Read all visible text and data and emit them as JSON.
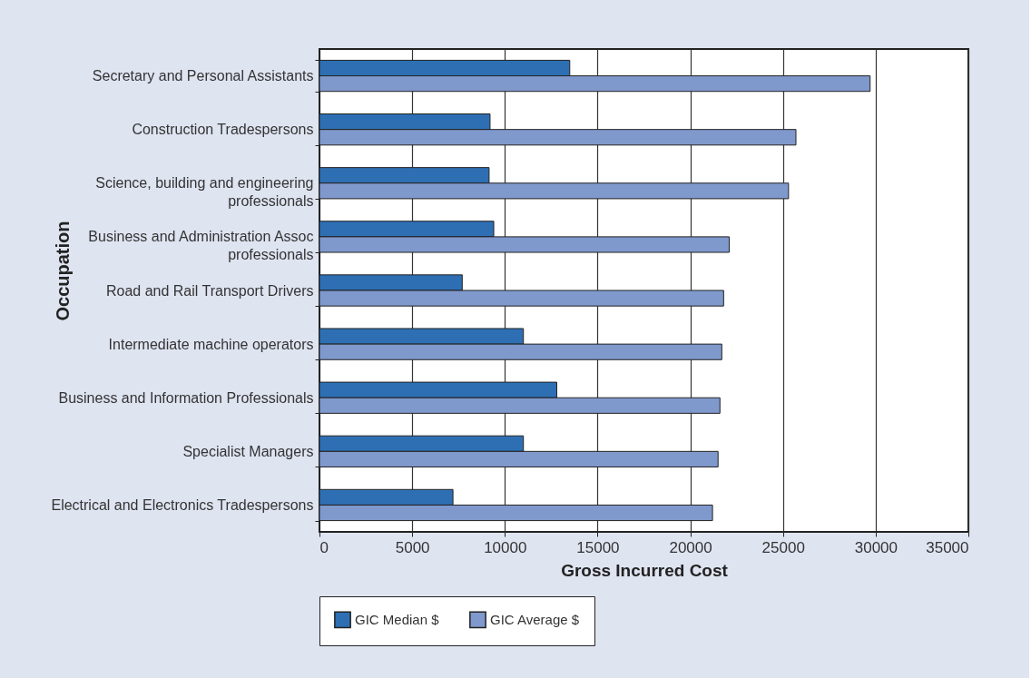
{
  "chart_data": {
    "type": "bar",
    "orientation": "horizontal",
    "xlabel": "Gross Incurred Cost",
    "ylabel": "Occupation",
    "categories": [
      "Secretary and Personal Assistants",
      "Construction Tradespersons",
      "Science, building and engineering\nprofessionals",
      "Business and Administration Assoc\nprofessionals",
      "Road and Rail Transport Drivers",
      "Intermediate machine operators",
      "Business and Information Professionals",
      "Specialist Managers",
      "Electrical and Electronics Tradespersons"
    ],
    "series": [
      {
        "name": "GIC Median $",
        "color": "#2e6fb4",
        "values": [
          13500,
          9200,
          9150,
          9400,
          7700,
          11000,
          12800,
          11000,
          7200
        ]
      },
      {
        "name": "GIC Average $",
        "color": "#7f99cc",
        "values": [
          29700,
          25700,
          25300,
          22100,
          21800,
          21700,
          21600,
          21500,
          21200
        ]
      }
    ],
    "xlim": [
      0,
      35000
    ],
    "xticks": [
      0,
      5000,
      10000,
      15000,
      20000,
      25000,
      30000,
      35000
    ],
    "grid": "x",
    "legend": "bottom"
  }
}
